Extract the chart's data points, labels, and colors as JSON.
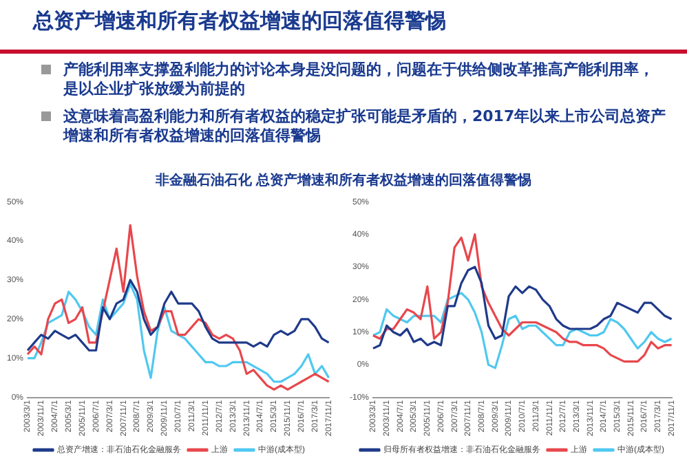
{
  "chart_data": [
    {
      "type": "line",
      "title": "总资产增速和所有者权益增速的回落值得警惕",
      "subtitle": "非金融石油石化 总资产增速和所有者权益增速的回落值得警惕",
      "annotations": [
        "产能利用率支撑盈利能力的讨论本身是没问题的，问题在于供给侧改革推高产能利用率，是以企业扩张放缓为前提的",
        "这意味着高盈利能力和所有者权益的稳定扩张可能是矛盾的，2017年以来上市公司总资产增速和所有者权益增速的回落值得警惕"
      ],
      "categories": [
        "2003/3/1",
        null,
        "2003/11/1",
        null,
        "2004/7/1",
        null,
        "2005/3/1",
        null,
        "2005/11/1",
        null,
        "2006/7/1",
        null,
        "2007/3/1",
        null,
        "2007/11/1",
        null,
        "2008/7/1",
        null,
        "2009/3/1",
        null,
        "2009/11/1",
        null,
        "2010/7/1",
        null,
        "2011/3/1",
        null,
        "2011/11/1",
        null,
        "2012/7/1",
        null,
        "2013/3/1",
        null,
        "2013/11/1",
        null,
        "2014/7/1",
        null,
        "2015/3/1",
        null,
        "2015/11/1",
        null,
        "2016/7/1",
        null,
        "2017/3/1",
        null,
        "2017/11/1"
      ],
      "series": [
        {
          "name": "总资产增速：非石油石化金融服务",
          "color": "#1f3a8a",
          "values": [
            12,
            14,
            16,
            15,
            17,
            16,
            15,
            16,
            14,
            12,
            12,
            23,
            20,
            24,
            25,
            30,
            27,
            20,
            16,
            18,
            24,
            27,
            24,
            24,
            24,
            22,
            18,
            15,
            14,
            14,
            14,
            14,
            14,
            13,
            14,
            13,
            16,
            17,
            16,
            17,
            20,
            20,
            18,
            15,
            14
          ]
        },
        {
          "name": "上游",
          "color": "#e8474c",
          "values": [
            11,
            13,
            11,
            20,
            24,
            25,
            19,
            20,
            23,
            14,
            14,
            22,
            30,
            38,
            27,
            44,
            31,
            22,
            17,
            18,
            22,
            22,
            16,
            16,
            18,
            20,
            19,
            16,
            15,
            16,
            15,
            12,
            6,
            7,
            5,
            3,
            2,
            3,
            2,
            3,
            4,
            5,
            6,
            5,
            4
          ]
        },
        {
          "name": "中游(成本型)",
          "color": "#4fc8f0",
          "values": [
            10,
            10,
            14,
            19,
            20,
            21,
            27,
            25,
            22,
            18,
            16,
            25,
            20,
            22,
            24,
            29,
            25,
            12,
            5,
            17,
            23,
            17,
            16,
            15,
            13,
            11,
            9,
            9,
            8,
            8,
            9,
            9,
            9,
            8,
            7,
            6,
            4,
            4,
            5,
            6,
            8,
            11,
            6,
            8,
            5
          ]
        }
      ],
      "ylim": [
        0,
        50
      ],
      "yticks": [
        {
          "value": 0,
          "label": "0%"
        },
        {
          "value": 10,
          "label": "10%"
        },
        {
          "value": 20,
          "label": "20%"
        },
        {
          "value": 30,
          "label": "30%"
        },
        {
          "value": 40,
          "label": "40%"
        },
        {
          "value": 50,
          "label": "50%"
        }
      ],
      "legend": "bottom"
    },
    {
      "type": "line",
      "categories": [
        "2003/3/1",
        null,
        "2003/11/1",
        null,
        "2004/7/1",
        null,
        "2005/3/1",
        null,
        "2005/11/1",
        null,
        "2006/7/1",
        null,
        "2007/3/1",
        null,
        "2007/11/1",
        null,
        "2008/7/1",
        null,
        "2009/3/1",
        null,
        "2009/11/1",
        null,
        "2010/7/1",
        null,
        "2011/3/1",
        null,
        "2011/11/1",
        null,
        "2012/7/1",
        null,
        "2013/3/1",
        null,
        "2013/11/1",
        null,
        "2014/7/1",
        null,
        "2015/3/1",
        null,
        "2015/11/1",
        null,
        "2016/7/1",
        null,
        "2017/3/1",
        null,
        "2017/11/1"
      ],
      "series": [
        {
          "name": "归母所有者权益增速：非石油石化金融服务",
          "color": "#1f3a8a",
          "values": [
            5,
            6,
            12,
            10,
            9,
            11,
            7,
            8,
            6,
            7,
            6,
            18,
            18,
            25,
            29,
            30,
            25,
            12,
            8,
            9,
            21,
            24,
            22,
            24,
            23,
            20,
            18,
            14,
            12,
            11,
            11,
            11,
            11,
            12,
            14,
            15,
            19,
            18,
            17,
            16,
            19,
            19,
            17,
            15,
            14
          ]
        },
        {
          "name": "上游",
          "color": "#e8474c",
          "values": [
            9,
            8,
            11,
            11,
            14,
            17,
            16,
            14,
            24,
            8,
            10,
            19,
            36,
            39,
            32,
            40,
            24,
            19,
            15,
            11,
            9,
            11,
            13,
            13,
            13,
            12,
            11,
            10,
            8,
            7,
            7,
            6,
            6,
            6,
            5,
            3,
            2,
            1,
            1,
            1,
            3,
            7,
            5,
            6,
            6
          ]
        },
        {
          "name": "中游(成本型)",
          "color": "#4fc8f0",
          "values": [
            9,
            10,
            17,
            15,
            14,
            13,
            15,
            15,
            15,
            15,
            13,
            20,
            21,
            22,
            20,
            16,
            10,
            0,
            -1,
            6,
            14,
            15,
            11,
            12,
            12,
            10,
            8,
            6,
            6,
            10,
            11,
            10,
            9,
            9,
            10,
            14,
            13,
            11,
            8,
            5,
            7,
            10,
            8,
            7,
            8
          ]
        }
      ],
      "ylim": [
        -10,
        50
      ],
      "yticks": [
        {
          "value": -10,
          "label": "-10%"
        },
        {
          "value": 0,
          "label": "0%"
        },
        {
          "value": 10,
          "label": "10%"
        },
        {
          "value": 20,
          "label": "20%"
        },
        {
          "value": 30,
          "label": "30%"
        },
        {
          "value": 40,
          "label": "40%"
        },
        {
          "value": 50,
          "label": "50%"
        }
      ],
      "legend": "bottom"
    }
  ]
}
